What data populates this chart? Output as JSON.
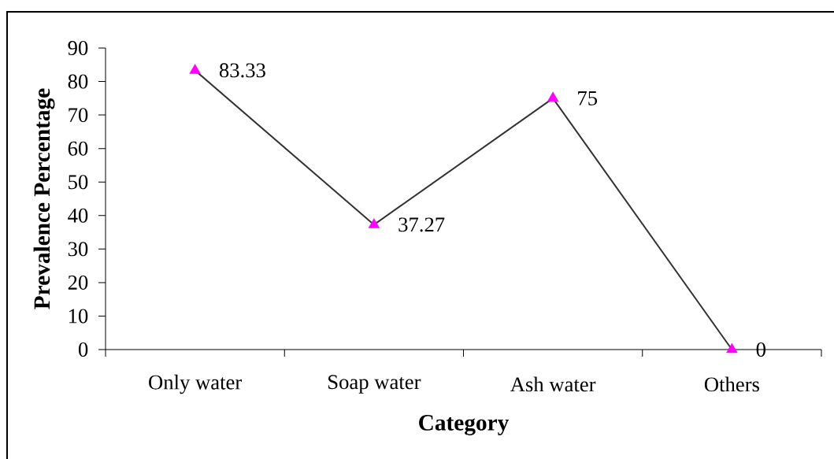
{
  "chart_data": {
    "type": "line",
    "xlabel": "Category",
    "ylabel": "Prevalence Percentage",
    "categories": [
      "Only water",
      "Soap water",
      "Ash water",
      "Others"
    ],
    "values": [
      83.33,
      37.27,
      75,
      0
    ],
    "color": "#333333",
    "colors": [
      "#ff00ff",
      "#ff00ff",
      "#ff00ff",
      "#ff00ff"
    ],
    "ylim": [
      0,
      90
    ],
    "yticks": [
      0,
      10,
      20,
      30,
      40,
      50,
      60,
      70,
      80,
      90
    ],
    "marker": "triangle",
    "line_style": "solid",
    "data_labels": true,
    "grid": false
  }
}
